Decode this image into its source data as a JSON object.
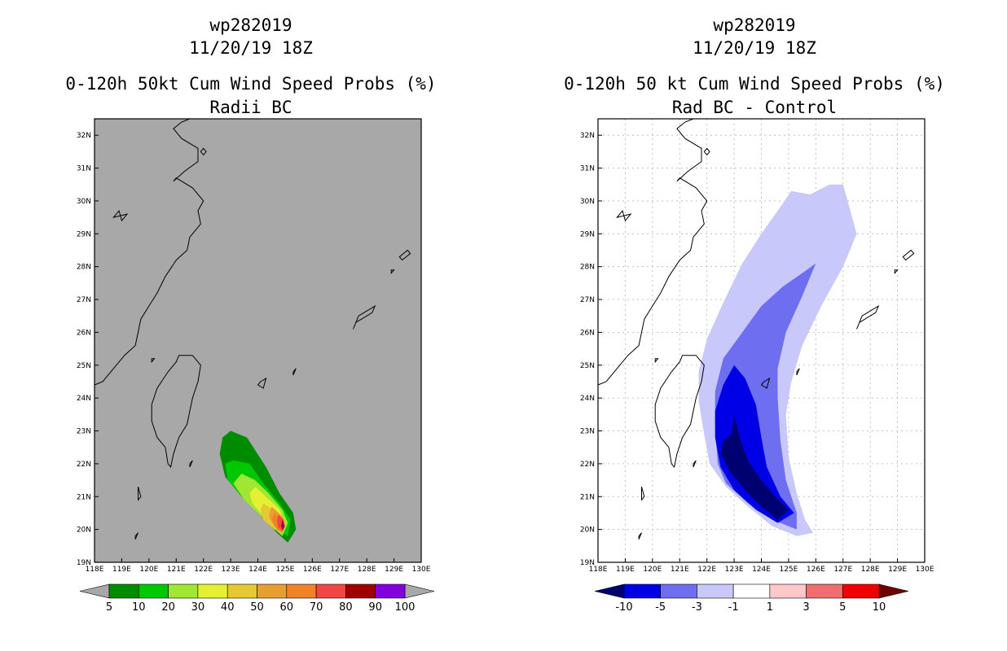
{
  "chart_data": [
    {
      "type": "heatmap",
      "title": "wp282019",
      "subtitle": "11/20/19 18Z",
      "heading": "0-120h 50kt Cum Wind Speed Probs (%)",
      "subheading": "Radii BC",
      "lon_range": [
        118,
        130
      ],
      "lat_range": [
        19,
        32.5
      ],
      "lon_ticks": [
        "118E",
        "119E",
        "120E",
        "121E",
        "122E",
        "123E",
        "124E",
        "125E",
        "126E",
        "127E",
        "128E",
        "129E",
        "130E"
      ],
      "lat_ticks": [
        "19N",
        "20N",
        "21N",
        "22N",
        "23N",
        "24N",
        "25N",
        "26N",
        "27N",
        "28N",
        "29N",
        "30N",
        "31N",
        "32N"
      ],
      "background": "#a8a8a8",
      "grid": false,
      "legend_position": "bottom",
      "colorbar": {
        "labels": [
          "5",
          "10",
          "20",
          "30",
          "40",
          "50",
          "60",
          "70",
          "80",
          "90",
          "100"
        ],
        "colors": [
          "#008c00",
          "#00c800",
          "#a0e632",
          "#e6f032",
          "#e6c832",
          "#e6a032",
          "#f08228",
          "#f04646",
          "#a00000",
          "#8200dc"
        ],
        "extend_colors": [
          "#a8a8a8",
          "#a8a8a8"
        ]
      },
      "contours": [
        {
          "level": 5,
          "color": "#008c00",
          "points": [
            [
              123.0,
              23.0
            ],
            [
              123.6,
              22.8
            ],
            [
              124.3,
              21.9
            ],
            [
              124.8,
              21.1
            ],
            [
              125.3,
              20.5
            ],
            [
              125.4,
              20.0
            ],
            [
              125.1,
              19.6
            ],
            [
              124.7,
              19.9
            ],
            [
              124.0,
              20.5
            ],
            [
              123.3,
              21.1
            ],
            [
              122.8,
              21.6
            ],
            [
              122.6,
              22.3
            ],
            [
              122.7,
              22.8
            ]
          ]
        },
        {
          "level": 10,
          "color": "#00c800",
          "points": [
            [
              123.1,
              22.1
            ],
            [
              123.7,
              22.0
            ],
            [
              124.2,
              21.4
            ],
            [
              124.8,
              20.8
            ],
            [
              125.2,
              20.3
            ],
            [
              125.1,
              19.8
            ],
            [
              124.7,
              20.0
            ],
            [
              124.1,
              20.5
            ],
            [
              123.4,
              21.0
            ],
            [
              122.9,
              21.5
            ],
            [
              122.8,
              22.0
            ]
          ]
        },
        {
          "level": 20,
          "color": "#a0e632",
          "points": [
            [
              123.4,
              21.7
            ],
            [
              123.9,
              21.5
            ],
            [
              124.4,
              21.1
            ],
            [
              124.9,
              20.6
            ],
            [
              125.1,
              20.2
            ],
            [
              124.9,
              19.8
            ],
            [
              124.5,
              20.1
            ],
            [
              124.0,
              20.5
            ],
            [
              123.5,
              20.9
            ],
            [
              123.1,
              21.4
            ]
          ]
        },
        {
          "level": 30,
          "color": "#e6f032",
          "points": [
            [
              123.9,
              21.3
            ],
            [
              124.3,
              21.0
            ],
            [
              124.8,
              20.6
            ],
            [
              125.0,
              20.2
            ],
            [
              124.9,
              19.9
            ],
            [
              124.6,
              20.1
            ],
            [
              124.2,
              20.4
            ],
            [
              123.8,
              20.8
            ],
            [
              123.7,
              21.1
            ]
          ]
        },
        {
          "level": 40,
          "color": "#e6c832",
          "points": [
            [
              124.2,
              20.8
            ],
            [
              124.7,
              20.5
            ],
            [
              125.0,
              20.2
            ],
            [
              124.9,
              19.9
            ],
            [
              124.6,
              20.0
            ],
            [
              124.2,
              20.3
            ],
            [
              124.1,
              20.6
            ]
          ]
        },
        {
          "level": 50,
          "color": "#e6a032",
          "points": [
            [
              124.5,
              20.7
            ],
            [
              124.9,
              20.4
            ],
            [
              125.0,
              20.1
            ],
            [
              124.9,
              19.9
            ],
            [
              124.6,
              20.1
            ],
            [
              124.4,
              20.4
            ]
          ]
        },
        {
          "level": 60,
          "color": "#f08228",
          "points": [
            [
              124.6,
              20.5
            ],
            [
              124.9,
              20.3
            ],
            [
              125.0,
              20.1
            ],
            [
              124.9,
              19.9
            ],
            [
              124.7,
              20.0
            ],
            [
              124.5,
              20.3
            ]
          ]
        },
        {
          "level": 70,
          "color": "#f04646",
          "points": [
            [
              124.75,
              20.45
            ],
            [
              124.95,
              20.3
            ],
            [
              125.0,
              20.1
            ],
            [
              124.9,
              19.95
            ],
            [
              124.75,
              20.05
            ],
            [
              124.7,
              20.25
            ]
          ]
        },
        {
          "level": 80,
          "color": "#a00000",
          "points": [
            [
              124.9,
              20.3
            ],
            [
              124.98,
              20.1
            ],
            [
              124.92,
              19.98
            ],
            [
              124.86,
              20.1
            ]
          ]
        },
        {
          "level": 90,
          "color": "#8200dc",
          "points": [
            [
              124.93,
              20.2
            ],
            [
              124.96,
              20.06
            ],
            [
              124.92,
              20.02
            ],
            [
              124.9,
              20.1
            ]
          ]
        }
      ]
    },
    {
      "type": "heatmap",
      "title": "wp282019",
      "subtitle": "11/20/19 18Z",
      "heading": "0-120h 50 kt Cum Wind Speed Probs (%)",
      "subheading": "Rad BC - Control",
      "lon_range": [
        118,
        130
      ],
      "lat_range": [
        19,
        32.5
      ],
      "lon_ticks": [
        "118E",
        "119E",
        "120E",
        "121E",
        "122E",
        "123E",
        "124E",
        "125E",
        "126E",
        "127E",
        "128E",
        "129E",
        "130E"
      ],
      "lat_ticks": [
        "19N",
        "20N",
        "21N",
        "22N",
        "23N",
        "24N",
        "25N",
        "26N",
        "27N",
        "28N",
        "29N",
        "30N",
        "31N",
        "32N"
      ],
      "background": "#ffffff",
      "grid": true,
      "legend_position": "bottom",
      "colorbar": {
        "labels": [
          "-10",
          "-5",
          "-3",
          "-1",
          "1",
          "3",
          "5",
          "10"
        ],
        "colors": [
          "#0000e6",
          "#6e6ef0",
          "#c8c8fa",
          "#ffffff",
          "#ffc8c8",
          "#f06e6e",
          "#f00000"
        ],
        "extend_colors": [
          "#000070",
          "#700000"
        ]
      },
      "contours": [
        {
          "level": -1,
          "color": "#c8c8fa",
          "points": [
            [
              125.1,
              30.3
            ],
            [
              125.8,
              30.2
            ],
            [
              126.5,
              30.5
            ],
            [
              127.0,
              30.5
            ],
            [
              127.5,
              29.0
            ],
            [
              127.0,
              28.0
            ],
            [
              126.2,
              26.8
            ],
            [
              125.5,
              25.6
            ],
            [
              125.1,
              24.5
            ],
            [
              124.9,
              23.5
            ],
            [
              125.0,
              22.2
            ],
            [
              125.3,
              21.1
            ],
            [
              125.6,
              20.3
            ],
            [
              125.9,
              19.9
            ],
            [
              125.3,
              19.8
            ],
            [
              124.4,
              20.1
            ],
            [
              123.5,
              20.7
            ],
            [
              122.7,
              21.3
            ],
            [
              122.1,
              22.0
            ],
            [
              121.9,
              22.9
            ],
            [
              121.7,
              23.9
            ],
            [
              121.7,
              24.8
            ],
            [
              122.0,
              25.8
            ],
            [
              122.6,
              26.9
            ],
            [
              123.3,
              28.1
            ],
            [
              124.0,
              29.0
            ],
            [
              124.6,
              29.7
            ]
          ]
        },
        {
          "level": -3,
          "color": "#6e6ef0",
          "points": [
            [
              125.5,
              27.8
            ],
            [
              126.0,
              28.1
            ],
            [
              125.5,
              27.1
            ],
            [
              124.9,
              26.0
            ],
            [
              124.6,
              24.9
            ],
            [
              124.6,
              24.0
            ],
            [
              124.7,
              22.7
            ],
            [
              124.9,
              21.5
            ],
            [
              125.3,
              20.5
            ],
            [
              125.3,
              20.0
            ],
            [
              124.4,
              20.3
            ],
            [
              123.5,
              20.8
            ],
            [
              122.7,
              21.4
            ],
            [
              122.4,
              22.0
            ],
            [
              122.3,
              23.1
            ],
            [
              122.3,
              24.2
            ],
            [
              122.6,
              25.2
            ],
            [
              123.3,
              26.0
            ],
            [
              124.0,
              26.8
            ],
            [
              124.8,
              27.4
            ]
          ]
        },
        {
          "level": -5,
          "color": "#0000e6",
          "points": [
            [
              123.0,
              25.0
            ],
            [
              123.4,
              24.6
            ],
            [
              123.8,
              23.8
            ],
            [
              124.0,
              22.8
            ],
            [
              124.2,
              21.9
            ],
            [
              124.7,
              21.0
            ],
            [
              125.2,
              20.5
            ],
            [
              124.6,
              20.2
            ],
            [
              123.8,
              20.6
            ],
            [
              123.0,
              21.2
            ],
            [
              122.5,
              21.9
            ],
            [
              122.3,
              22.8
            ],
            [
              122.3,
              23.6
            ],
            [
              122.6,
              24.4
            ]
          ]
        },
        {
          "level": -10,
          "color": "#000070",
          "points": [
            [
              123.0,
              23.5
            ],
            [
              123.2,
              22.8
            ],
            [
              123.5,
              22.1
            ],
            [
              124.0,
              21.5
            ],
            [
              124.5,
              21.0
            ],
            [
              125.0,
              20.6
            ],
            [
              124.6,
              20.3
            ],
            [
              124.0,
              20.7
            ],
            [
              123.4,
              21.2
            ],
            [
              122.9,
              21.7
            ],
            [
              122.5,
              22.3
            ],
            [
              122.6,
              22.7
            ],
            [
              122.9,
              22.9
            ]
          ]
        }
      ]
    }
  ],
  "coastlines": {
    "taiwan": [
      [
        121.1,
        25.3
      ],
      [
        121.6,
        25.3
      ],
      [
        121.9,
        25.0
      ],
      [
        121.8,
        24.5
      ],
      [
        121.6,
        24.0
      ],
      [
        121.4,
        23.2
      ],
      [
        121.1,
        22.8
      ],
      [
        120.9,
        22.3
      ],
      [
        120.8,
        21.9
      ],
      [
        120.7,
        22.0
      ],
      [
        120.6,
        22.5
      ],
      [
        120.3,
        22.8
      ],
      [
        120.1,
        23.3
      ],
      [
        120.1,
        23.8
      ],
      [
        120.3,
        24.3
      ],
      [
        120.7,
        24.8
      ],
      [
        121.0,
        25.1
      ]
    ],
    "china": [
      [
        118.0,
        24.4
      ],
      [
        118.3,
        24.5
      ],
      [
        118.7,
        24.9
      ],
      [
        119.1,
        25.3
      ],
      [
        119.5,
        25.6
      ],
      [
        119.6,
        26.0
      ],
      [
        119.7,
        26.4
      ],
      [
        120.0,
        26.8
      ],
      [
        120.3,
        27.2
      ],
      [
        120.6,
        27.7
      ],
      [
        121.0,
        28.2
      ],
      [
        121.4,
        28.5
      ],
      [
        121.5,
        28.9
      ],
      [
        121.9,
        29.3
      ],
      [
        121.8,
        29.7
      ],
      [
        122.0,
        30.0
      ],
      [
        121.6,
        30.4
      ],
      [
        121.0,
        30.7
      ],
      [
        120.9,
        30.6
      ],
      [
        121.3,
        30.9
      ],
      [
        121.8,
        31.2
      ],
      [
        121.8,
        31.6
      ],
      [
        121.2,
        31.9
      ],
      [
        120.9,
        32.2
      ],
      [
        121.2,
        32.4
      ],
      [
        121.5,
        32.5
      ]
    ],
    "islands": [
      [
        [
          127.6,
          26.3
        ],
        [
          128.2,
          26.6
        ],
        [
          128.3,
          26.8
        ],
        [
          127.9,
          26.6
        ],
        [
          127.7,
          26.5
        ],
        [
          127.5,
          26.1
        ]
      ],
      [
        [
          129.3,
          28.2
        ],
        [
          129.6,
          28.4
        ],
        [
          129.5,
          28.5
        ],
        [
          129.2,
          28.3
        ]
      ],
      [
        [
          128.9,
          27.8
        ],
        [
          129.0,
          27.9
        ],
        [
          128.9,
          27.9
        ]
      ],
      [
        [
          124.1,
          24.5
        ],
        [
          124.3,
          24.6
        ],
        [
          124.2,
          24.3
        ],
        [
          124.0,
          24.4
        ]
      ],
      [
        [
          125.3,
          24.8
        ],
        [
          125.4,
          24.9
        ],
        [
          125.3,
          24.7
        ]
      ],
      [
        [
          121.5,
          22.0
        ],
        [
          121.6,
          22.1
        ],
        [
          121.5,
          21.9
        ]
      ],
      [
        [
          122.0,
          31.4
        ],
        [
          122.1,
          31.5
        ],
        [
          122.0,
          31.6
        ],
        [
          121.9,
          31.5
        ]
      ],
      [
        [
          118.7,
          29.5
        ],
        [
          119.2,
          29.6
        ],
        [
          119.0,
          29.4
        ],
        [
          118.9,
          29.7
        ]
      ],
      [
        [
          119.6,
          21.3
        ],
        [
          119.7,
          21.0
        ],
        [
          119.6,
          20.9
        ]
      ],
      [
        [
          119.5,
          19.8
        ],
        [
          119.6,
          19.9
        ],
        [
          119.5,
          19.7
        ]
      ],
      [
        [
          120.1,
          25.1
        ],
        [
          120.2,
          25.2
        ],
        [
          120.1,
          25.2
        ]
      ]
    ]
  }
}
